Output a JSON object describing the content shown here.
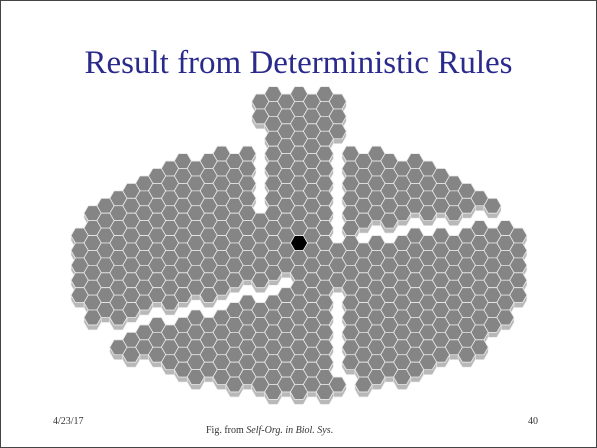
{
  "title": "Result from Deterministic Rules",
  "footer": {
    "date": "4/23/17",
    "caption": {
      "before": "Fig. from ",
      "italic": "Self-Org. in Biol. Sys",
      "after": "."
    },
    "page": "40"
  }
}
